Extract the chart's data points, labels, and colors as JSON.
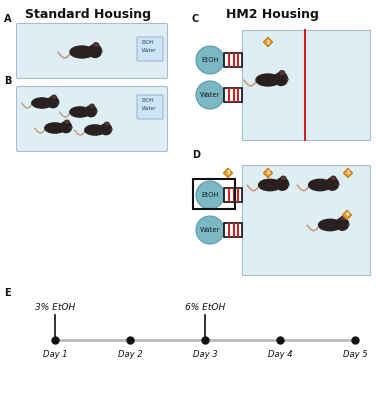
{
  "title_left": "Standard Housing",
  "title_right": "HM2 Housing",
  "bg_color": "#ffffff",
  "cage_fill": "#ddeef5",
  "cage_edge": "#aabbcc",
  "teal_color": "#7ab8c4",
  "teal_edge": "#5a9ab0",
  "mouse_body": "#2a2020",
  "mouse_tail": "#c8a080",
  "red_color": "#cc2222",
  "orange_color": "#e8a030",
  "gray_color": "#bbbbbb",
  "black_color": "#111111",
  "timeline_days": [
    "Day 1",
    "Day 2",
    "Day 3",
    "Day 4",
    "Day 5"
  ],
  "timeline_labels": [
    "3% EtOH",
    "6% EtOH"
  ],
  "title_fontsize": 9,
  "panel_fontsize": 7
}
